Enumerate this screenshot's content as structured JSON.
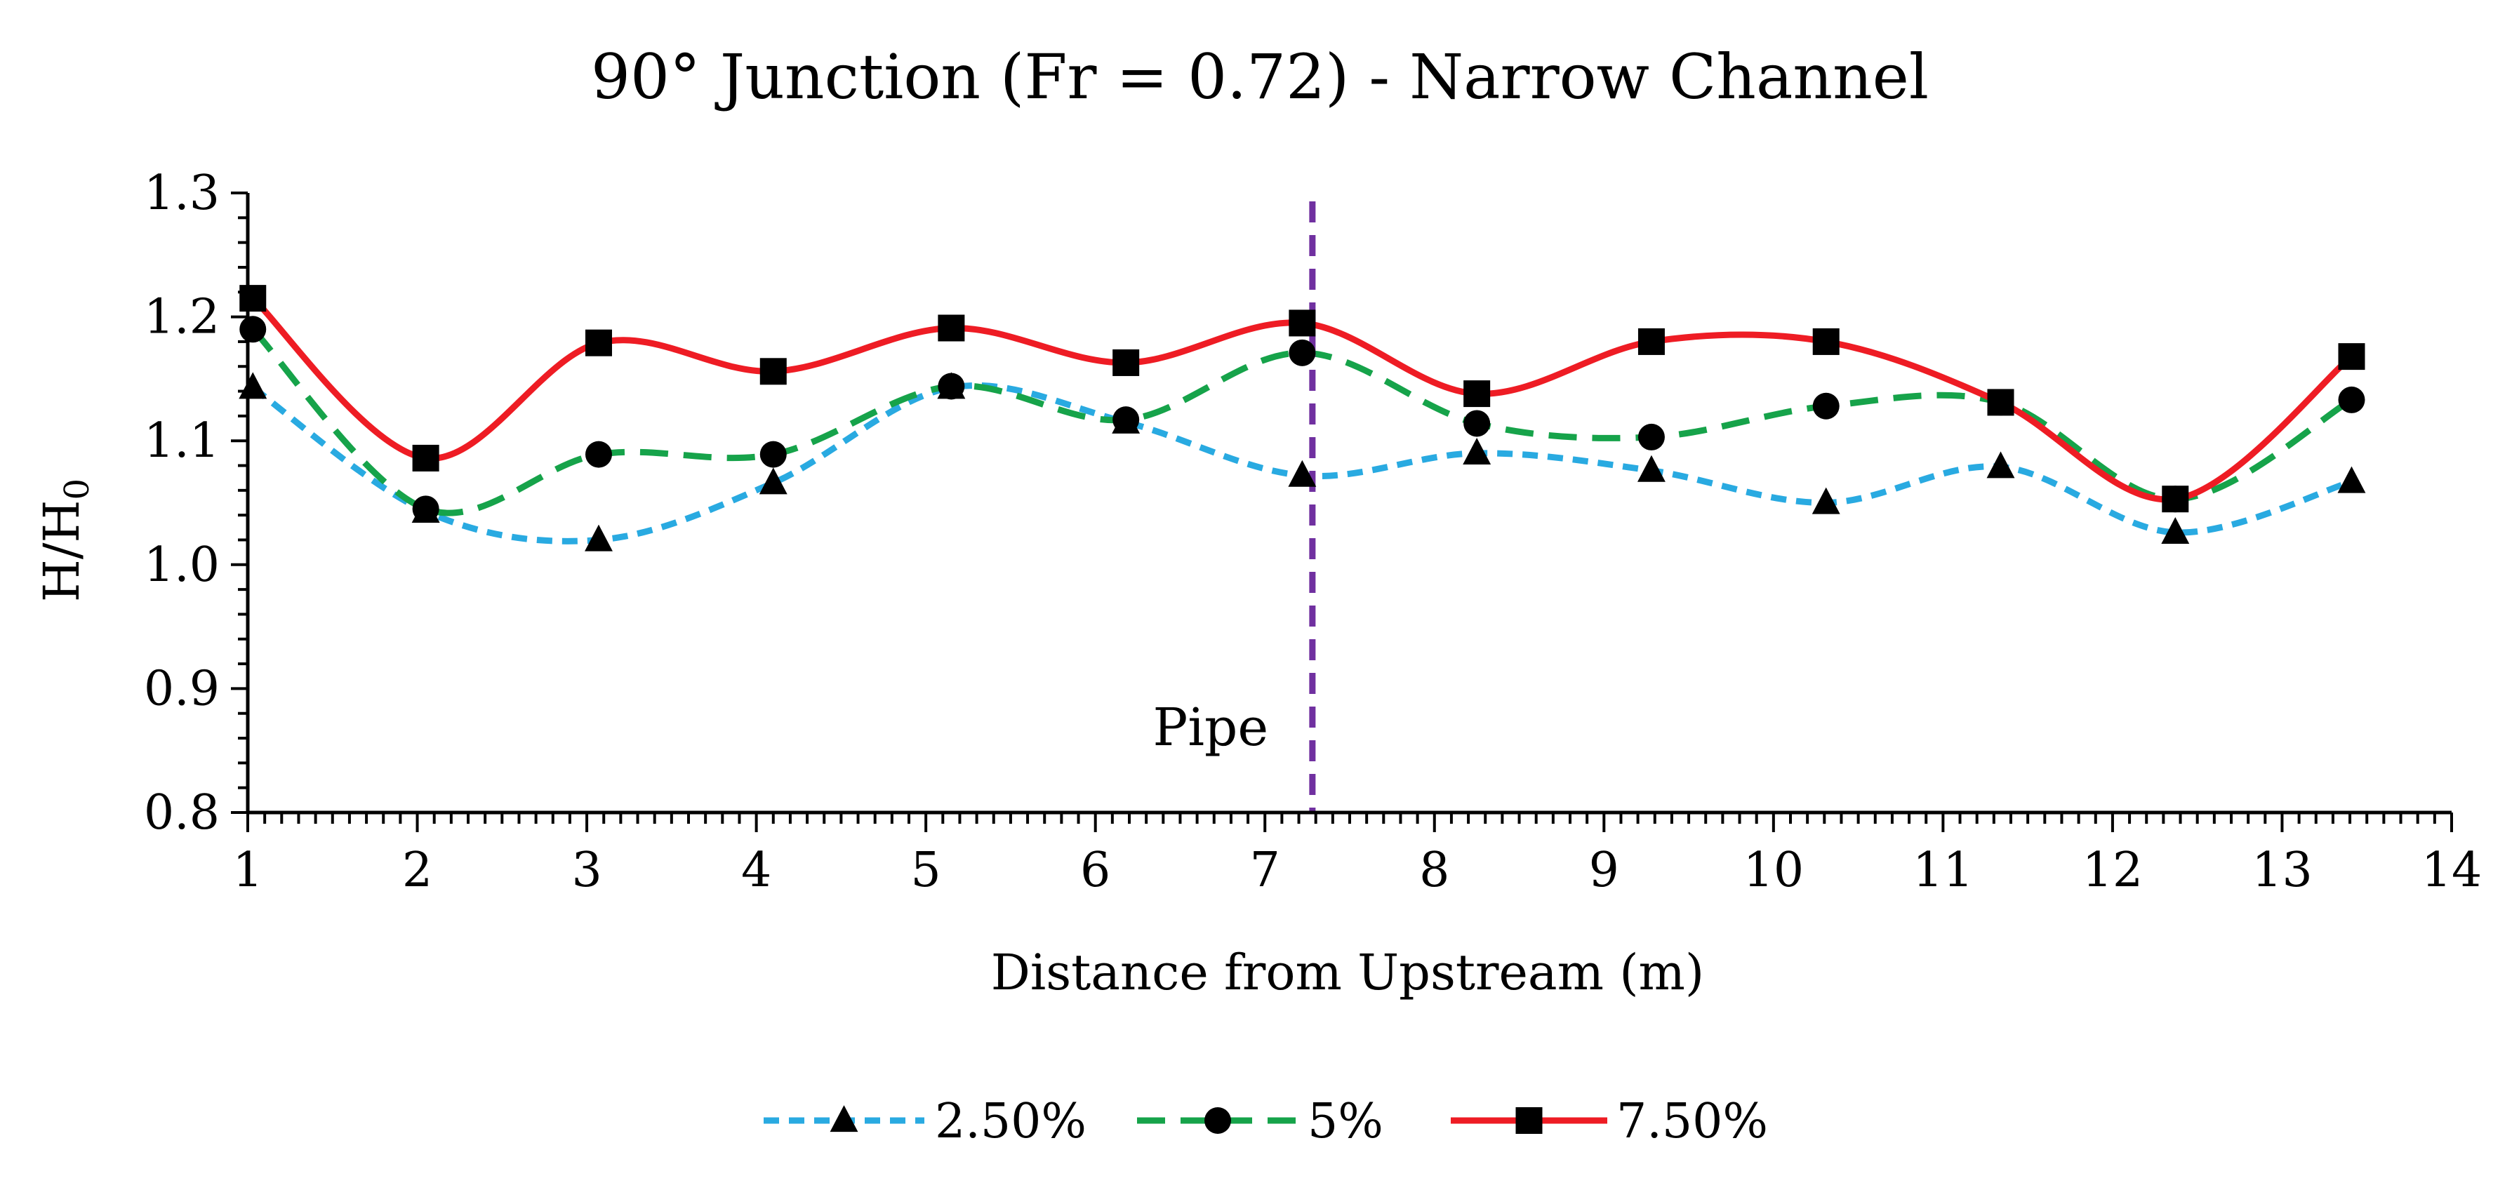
{
  "chart_data": {
    "type": "line",
    "title": "90° Junction (Fr = 0.72) - Narrow Channel",
    "xlabel": "Distance from Upstream (m)",
    "ylabel": "H/H",
    "ylabel_subscript": "0",
    "xlim": [
      1,
      14
    ],
    "ylim": [
      0.8,
      1.3
    ],
    "xticks": [
      1,
      2,
      3,
      4,
      5,
      6,
      7,
      8,
      9,
      10,
      11,
      12,
      13,
      14
    ],
    "yticks": [
      0.8,
      0.9,
      1.0,
      1.1,
      1.2,
      1.3
    ],
    "xtick_labels": [
      "1",
      "2",
      "3",
      "4",
      "5",
      "6",
      "7",
      "8",
      "9",
      "10",
      "11",
      "12",
      "13",
      "14"
    ],
    "ytick_labels": [
      "0.8",
      "0.9",
      "1.0",
      "1.1",
      "1.2",
      "1.3"
    ],
    "grid": false,
    "legend_position": "bottom",
    "series": [
      {
        "name": "2.50%",
        "color": "#29aae1",
        "line_style": "dotted",
        "marker": "triangle",
        "x": [
          1.03,
          2.05,
          3.07,
          4.1,
          5.15,
          6.18,
          7.22,
          8.25,
          9.28,
          10.31,
          11.34,
          12.37,
          13.41
        ],
        "y": [
          1.143,
          1.043,
          1.02,
          1.066,
          1.143,
          1.115,
          1.072,
          1.09,
          1.076,
          1.05,
          1.079,
          1.026,
          1.067
        ]
      },
      {
        "name": "5%",
        "color": "#16a34a",
        "line_style": "dashed",
        "marker": "circle",
        "x": [
          1.03,
          2.05,
          3.07,
          4.1,
          5.15,
          6.18,
          7.22,
          8.25,
          9.28,
          10.31,
          11.34,
          12.37,
          13.41
        ],
        "y": [
          1.19,
          1.045,
          1.089,
          1.089,
          1.144,
          1.117,
          1.171,
          1.114,
          1.103,
          1.128,
          1.131,
          1.053,
          1.133
        ]
      },
      {
        "name": "7.50%",
        "color": "#ee1c24",
        "line_style": "solid",
        "marker": "square",
        "x": [
          1.03,
          2.05,
          3.07,
          4.1,
          5.15,
          6.18,
          7.22,
          8.25,
          9.28,
          10.31,
          11.34,
          12.37,
          13.41
        ],
        "y": [
          1.215,
          1.086,
          1.179,
          1.156,
          1.191,
          1.163,
          1.195,
          1.138,
          1.18,
          1.18,
          1.131,
          1.053,
          1.168
        ]
      }
    ],
    "annotations": [
      {
        "text": "Pipe",
        "x": 7.28,
        "line_color": "#7030a0",
        "line_style": "dashed"
      }
    ]
  }
}
